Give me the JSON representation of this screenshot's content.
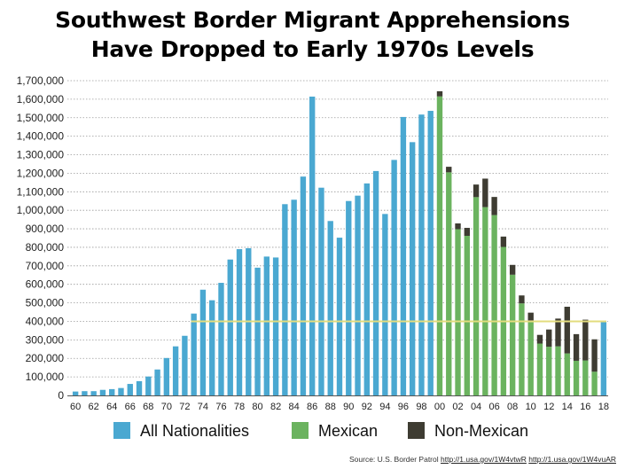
{
  "title": {
    "line1": "Southwest Border Migrant Apprehensions",
    "line2": "Have Dropped to Early 1970s Levels"
  },
  "colors": {
    "all_nationalities": "#4aa8d1",
    "mexican": "#6bb35f",
    "non_mexican": "#3e3c32",
    "reference_line": "#e3dc7e",
    "grid": "#9a9a9a"
  },
  "source": {
    "prefix": "Source: U.S. Border Patrol",
    "link1": "http://1.usa.gov/1W4vtwR",
    "link2": "http://1.usa.gov/1W4vuAR"
  },
  "chart_data": {
    "type": "bar",
    "ylim": [
      0,
      1700000
    ],
    "yticks": [
      0,
      100000,
      200000,
      300000,
      400000,
      500000,
      600000,
      700000,
      800000,
      900000,
      1000000,
      1100000,
      1200000,
      1300000,
      1400000,
      1500000,
      1600000,
      1700000
    ],
    "ytick_labels": [
      "0",
      "100,000",
      "200,000",
      "300,000",
      "400,000",
      "500,000",
      "600,000",
      "700,000",
      "800,000",
      "900,000",
      "1,000,000",
      "1,100,000",
      "1,200,000",
      "1,300,000",
      "1,400,000",
      "1,500,000",
      "1,600,000",
      "1,700,000"
    ],
    "grid": true,
    "legend": "bottom",
    "reference_line": 400000,
    "categories": [
      "60",
      "61",
      "62",
      "63",
      "64",
      "65",
      "66",
      "67",
      "68",
      "69",
      "70",
      "71",
      "72",
      "73",
      "74",
      "75",
      "76",
      "77",
      "78",
      "79",
      "80",
      "81",
      "82",
      "83",
      "84",
      "85",
      "86",
      "87",
      "88",
      "89",
      "90",
      "91",
      "92",
      "93",
      "94",
      "95",
      "96",
      "97",
      "98",
      "99",
      "00",
      "01",
      "02",
      "03",
      "04",
      "05",
      "06",
      "07",
      "08",
      "09",
      "10",
      "11",
      "12",
      "13",
      "14",
      "15",
      "16",
      "17",
      "18"
    ],
    "tick_labels": [
      "60",
      "62",
      "64",
      "66",
      "68",
      "70",
      "72",
      "74",
      "76",
      "78",
      "80",
      "82",
      "84",
      "86",
      "88",
      "90",
      "92",
      "94",
      "96",
      "98",
      "00",
      "02",
      "04",
      "06",
      "08",
      "10",
      "12",
      "14",
      "16",
      "18"
    ],
    "series": [
      {
        "name": "All Nationalities",
        "values": [
          21000,
          23000,
          23000,
          30000,
          34000,
          40000,
          62000,
          77000,
          102000,
          140000,
          202000,
          265000,
          322000,
          442000,
          571000,
          514000,
          608000,
          734000,
          790000,
          795000,
          690000,
          750000,
          745000,
          1033000,
          1057000,
          1182000,
          1614000,
          1122000,
          942000,
          852000,
          1050000,
          1079000,
          1145000,
          1212000,
          980000,
          1272000,
          1504000,
          1368000,
          1517000,
          1537000,
          0,
          0,
          0,
          0,
          0,
          0,
          0,
          0,
          0,
          0,
          0,
          0,
          0,
          0,
          0,
          0,
          0,
          0,
          397000
        ]
      },
      {
        "name": "Mexican",
        "values": [
          0,
          0,
          0,
          0,
          0,
          0,
          0,
          0,
          0,
          0,
          0,
          0,
          0,
          0,
          0,
          0,
          0,
          0,
          0,
          0,
          0,
          0,
          0,
          0,
          0,
          0,
          0,
          0,
          0,
          0,
          0,
          0,
          0,
          0,
          0,
          0,
          0,
          0,
          0,
          0,
          1615000,
          1205000,
          898000,
          862000,
          1071000,
          1017000,
          974000,
          802000,
          652000,
          497000,
          405000,
          280000,
          263000,
          265000,
          227000,
          187000,
          189000,
          128000,
          0
        ]
      },
      {
        "name": "Non-Mexican",
        "values": [
          0,
          0,
          0,
          0,
          0,
          0,
          0,
          0,
          0,
          0,
          0,
          0,
          0,
          0,
          0,
          0,
          0,
          0,
          0,
          0,
          0,
          0,
          0,
          0,
          0,
          0,
          0,
          0,
          0,
          0,
          0,
          0,
          0,
          0,
          0,
          0,
          0,
          0,
          0,
          0,
          28000,
          30000,
          31000,
          43000,
          68000,
          154000,
          98000,
          56000,
          53000,
          43000,
          42000,
          47000,
          93000,
          150000,
          252000,
          144000,
          220000,
          175000,
          0
        ]
      }
    ]
  }
}
